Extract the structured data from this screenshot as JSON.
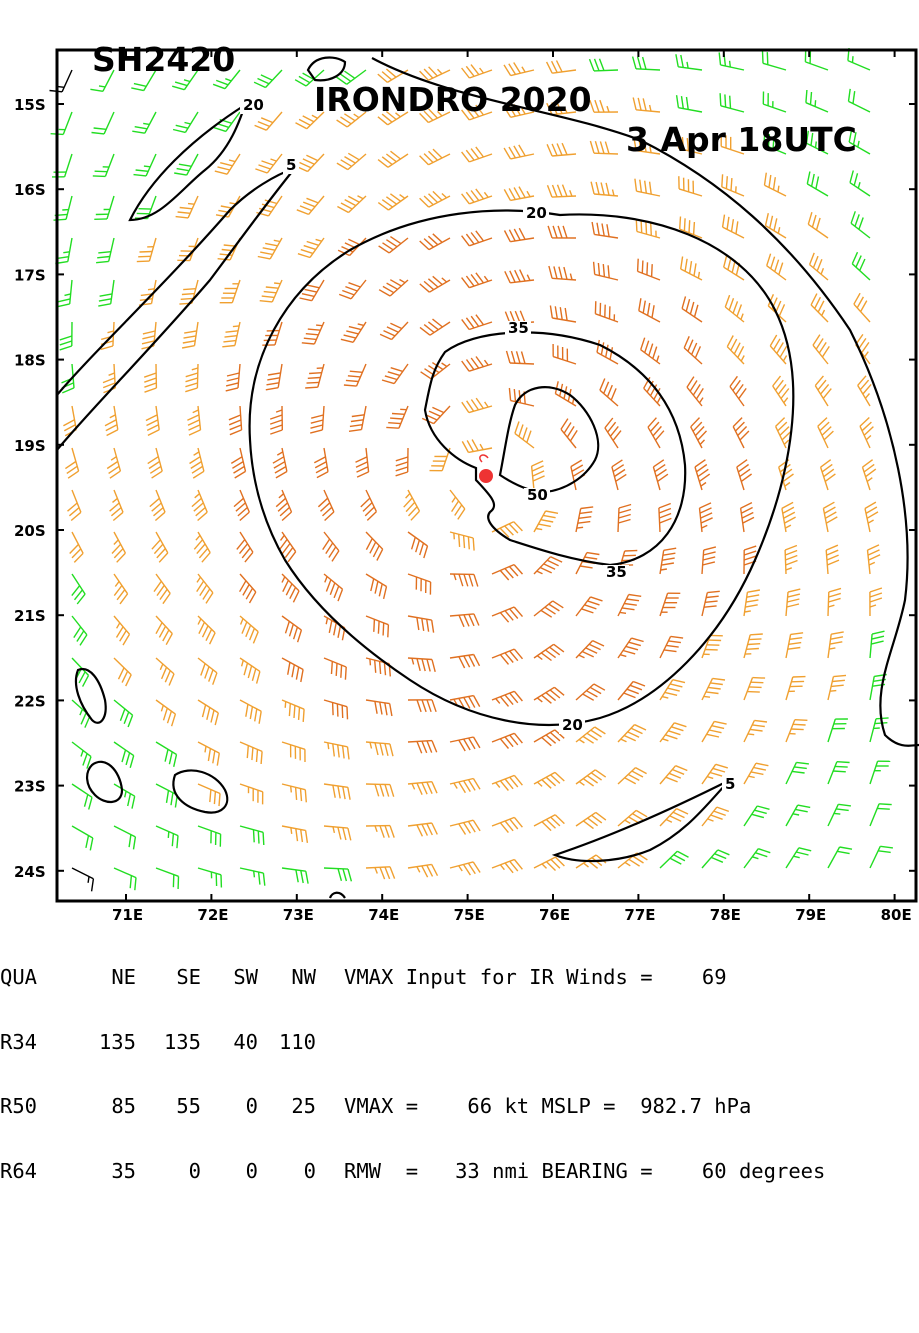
{
  "header": {
    "storm_id": "SH2420",
    "storm_name_year": "IRONDRO 2020",
    "datetime": "3 Apr 18UTC"
  },
  "map": {
    "lat_labels": [
      "15S",
      "16S",
      "17S",
      "18S",
      "19S",
      "20S",
      "21S",
      "22S",
      "23S",
      "24S"
    ],
    "lon_labels": [
      "71E",
      "72E",
      "73E",
      "74E",
      "75E",
      "76E",
      "77E",
      "78E",
      "79E",
      "80E"
    ],
    "contour_labels": [
      {
        "text": "20",
        "value": 20
      },
      {
        "text": "5",
        "value": 5
      },
      {
        "text": "20",
        "value": 20
      },
      {
        "text": "35",
        "value": 35
      },
      {
        "text": "50",
        "value": 50
      },
      {
        "text": "35",
        "value": 35
      },
      {
        "text": "20",
        "value": 20
      },
      {
        "text": "5",
        "value": 5
      }
    ],
    "colors": {
      "calm": "#000000",
      "gale": "#22dd22",
      "storm": "#f0a030",
      "hurricane": "#e07020",
      "center": "#ee3333"
    },
    "storm_center": {
      "lat": -19.45,
      "lon": 75.15
    }
  },
  "table": {
    "header": {
      "label": "QUA",
      "ne": "NE",
      "se": "SE",
      "sw": "SW",
      "nw": "NW",
      "info": "VMAX Input for IR Winds =    69"
    },
    "rows": [
      {
        "label": "R34",
        "ne": "135",
        "se": "135",
        "sw": "40",
        "nw": "110",
        "info": ""
      },
      {
        "label": "R50",
        "ne": "85",
        "se": "55",
        "sw": "0",
        "nw": "25",
        "info": "VMAX =    66 kt MSLP =  982.7 hPa"
      },
      {
        "label": "R64",
        "ne": "35",
        "se": "0",
        "sw": "0",
        "nw": "0",
        "info": "RMW  =   33 nmi BEARING =    60 degrees"
      }
    ]
  }
}
